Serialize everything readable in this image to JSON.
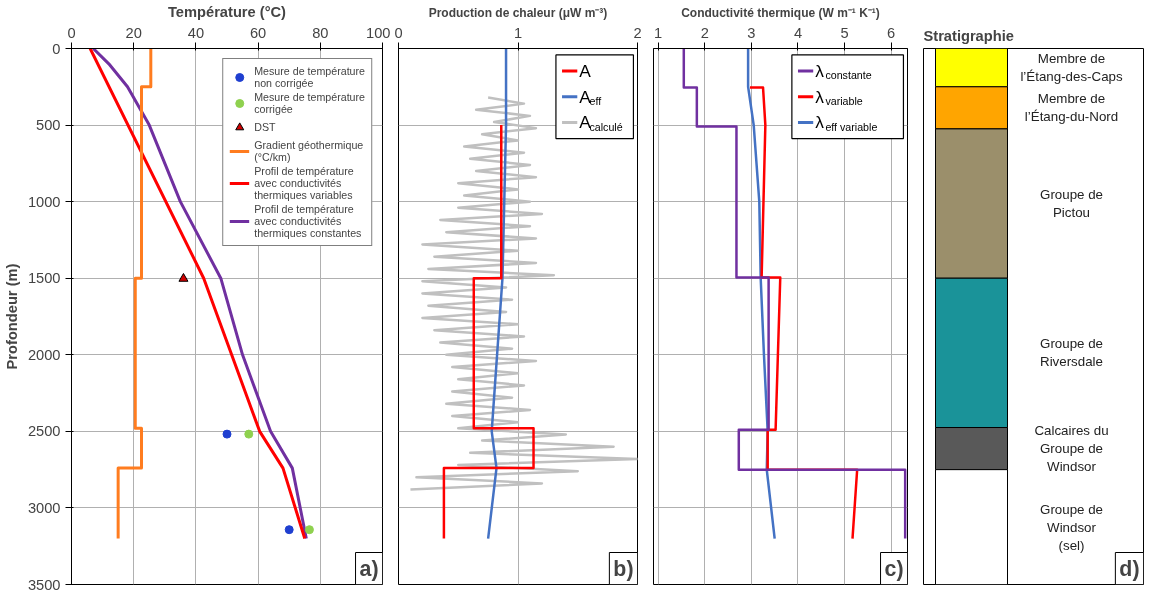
{
  "chart_data": [
    {
      "type": "line",
      "xlabel": "Température (°C)",
      "ylabel": "Profondeur (m)",
      "xlim": [
        0,
        100
      ],
      "xticks": [
        0,
        20,
        40,
        60,
        80,
        100
      ],
      "ylim": [
        3500,
        0
      ],
      "yticks": [
        0,
        500,
        1000,
        1500,
        2000,
        2500,
        3000,
        3500
      ],
      "grid": true,
      "legend": "top right",
      "annotations": [
        "a)"
      ],
      "series": [
        {
          "name": "Mesure de température non corrigée",
          "type": "scatter",
          "marker": "circle",
          "color": "#1f3fd0",
          "x": [
            50,
            70
          ],
          "values": [
            2518,
            3142
          ]
        },
        {
          "name": "Mesure de température corrigée",
          "type": "scatter",
          "marker": "circle",
          "color": "#8fd14f",
          "x": [
            57,
            76.5
          ],
          "values": [
            2518,
            3142
          ]
        },
        {
          "name": "DST",
          "type": "scatter",
          "marker": "triangle",
          "color": "#d00000",
          "x": [
            36
          ],
          "values": [
            1503
          ]
        },
        {
          "name": "Gradient géothermique (°C/km)",
          "type": "line",
          "color": "#ff7c1f",
          "x": [
            25.5,
            25.5,
            22.5,
            22.5,
            20.5,
            20.5,
            22.5,
            22.5,
            15,
            15
          ],
          "values": [
            0,
            250,
            250,
            1500,
            1500,
            2480,
            2480,
            2740,
            2740,
            3200
          ]
        },
        {
          "name": "Profil de température avec conductivités thermiques variables",
          "type": "line",
          "color": "#ff0000",
          "x": [
            6,
            42.5,
            51.5,
            60.5,
            68,
            75
          ],
          "values": [
            0,
            1500,
            2000,
            2500,
            2740,
            3200
          ]
        },
        {
          "name": "Profil de température avec conductivités thermiques constantes",
          "type": "line",
          "color": "#7030a0",
          "x": [
            7,
            12,
            18,
            25,
            35,
            48,
            55,
            64,
            71,
            75.5
          ],
          "values": [
            0,
            100,
            250,
            500,
            1000,
            1500,
            2000,
            2500,
            2740,
            3200
          ]
        }
      ]
    },
    {
      "type": "line",
      "xlabel": "Production de chaleur (μW m⁻³)",
      "xlim": [
        0,
        2
      ],
      "xticks": [
        0,
        1,
        2
      ],
      "ylim": [
        3500,
        0
      ],
      "yticks": [
        0,
        500,
        1000,
        1500,
        2000,
        2500,
        3000,
        3500
      ],
      "tick_labels": "x",
      "grid": true,
      "legend": "top right",
      "annotations": [
        "b)"
      ],
      "series": [
        {
          "name": "A",
          "color": "#ff0000",
          "x": [
            0.86,
            0.86,
            0.63,
            0.63,
            1.13,
            1.13,
            0.38,
            0.38
          ],
          "values": [
            500,
            1500,
            1500,
            2480,
            2480,
            2740,
            2740,
            3200
          ]
        },
        {
          "name": "A$_{eff}$",
          "color": "#4472c4",
          "x": [
            0.9,
            0.9,
            0.87,
            0.78,
            0.82,
            0.75
          ],
          "values": [
            0,
            500,
            1500,
            2500,
            2740,
            3200
          ]
        },
        {
          "name": "A$_{calculé}$",
          "color": "#c0c0c0",
          "x": [
            0.75,
            1.05,
            0.65,
            1.1,
            0.8,
            1.15,
            0.7,
            1.0,
            0.55,
            1.05,
            0.6,
            1.1,
            0.65,
            1.15,
            0.5,
            1.0,
            0.55,
            1.1,
            0.5,
            1.2,
            0.35,
            1.1,
            0.4,
            1.15,
            0.2,
            1.0,
            0.3,
            1.15,
            0.25,
            1.3,
            0.2,
            0.9,
            0.2,
            0.95,
            0.25,
            0.9,
            0.2,
            1.0,
            0.3,
            1.05,
            0.35,
            0.95,
            0.4,
            1.15,
            0.45,
            1.0,
            0.5,
            1.05,
            0.45,
            0.95,
            0.4,
            1.1,
            0.45,
            1.0,
            0.5,
            1.4,
            0.7,
            1.8,
            0.6,
            2.0,
            0.5,
            1.5,
            0.15,
            1.2,
            0.1
          ],
          "values": [
            320,
            360,
            400,
            440,
            480,
            520,
            560,
            600,
            640,
            680,
            720,
            760,
            800,
            840,
            880,
            920,
            960,
            1000,
            1040,
            1080,
            1120,
            1160,
            1200,
            1240,
            1280,
            1320,
            1360,
            1400,
            1440,
            1480,
            1520,
            1560,
            1600,
            1640,
            1680,
            1720,
            1760,
            1800,
            1840,
            1880,
            1920,
            1960,
            2000,
            2040,
            2080,
            2120,
            2160,
            2200,
            2240,
            2280,
            2320,
            2360,
            2400,
            2440,
            2480,
            2520,
            2560,
            2600,
            2640,
            2680,
            2720,
            2760,
            2800,
            2840,
            2880
          ]
        }
      ]
    },
    {
      "type": "line",
      "xlabel": "Conductivité thermique (W m⁻¹ K⁻¹)",
      "xlim": [
        0.9,
        6.35
      ],
      "xticks": [
        1,
        2,
        3,
        4,
        5,
        6
      ],
      "ylim": [
        3500,
        0
      ],
      "yticks": [
        0,
        500,
        1000,
        1500,
        2000,
        2500,
        3000,
        3500
      ],
      "tick_labels": "x",
      "grid": true,
      "legend": "top right",
      "annotations": [
        "c)"
      ],
      "series": [
        {
          "name": "λ$_{constante}$",
          "color": "#7030a0",
          "x": [
            1.55,
            1.55,
            1.83,
            1.83,
            2.68,
            2.68,
            3.37,
            3.37,
            2.73,
            2.73,
            6.3,
            6.3
          ],
          "values": [
            0,
            254,
            254,
            510,
            510,
            1495,
            1495,
            2490,
            2490,
            2750,
            2750,
            3200
          ]
        },
        {
          "name": "λ$_{variable}$",
          "color": "#ff0000",
          "x": [
            2.97,
            3.25,
            3.3,
            3.22,
            3.62,
            3.52,
            3.35,
            3.35,
            5.27,
            5.17
          ],
          "values": [
            254,
            254,
            500,
            1495,
            1495,
            2490,
            2490,
            2750,
            2750,
            3200
          ]
        },
        {
          "name": "λ$_{eff  variable}$",
          "color": "#4472c4",
          "x": [
            2.93,
            2.93,
            3.05,
            3.17,
            3.2,
            3.27,
            3.35,
            3.33,
            3.5
          ],
          "values": [
            0,
            250,
            500,
            1000,
            1500,
            2000,
            2500,
            2750,
            3200
          ]
        }
      ]
    },
    {
      "type": "bar",
      "title": "Stratigraphie",
      "stacked": true,
      "categories": [
        null
      ],
      "ylim": [
        3500,
        0
      ],
      "tick_labels": false,
      "annotations": [
        "d)"
      ],
      "series": [
        {
          "name": "Membre de l’Étang-des-Caps",
          "color": "#ffff00",
          "values": [
            250
          ]
        },
        {
          "name": "Membre de l’Étang-du-Nord",
          "color": "#ffa500",
          "values": [
            275
          ]
        },
        {
          "name": "Groupe de Pictou",
          "color": "#9b8f6b",
          "values": [
            975
          ]
        },
        {
          "name": "Groupe de Riversdale",
          "color": "#1a9399",
          "values": [
            975
          ]
        },
        {
          "name": "Calcaires du Groupe de Windsor",
          "color": "#595959",
          "values": [
            275
          ]
        },
        {
          "name": "Groupe de Windsor (sel)",
          "color": "#ffffff",
          "values": [
            750
          ]
        }
      ]
    }
  ]
}
